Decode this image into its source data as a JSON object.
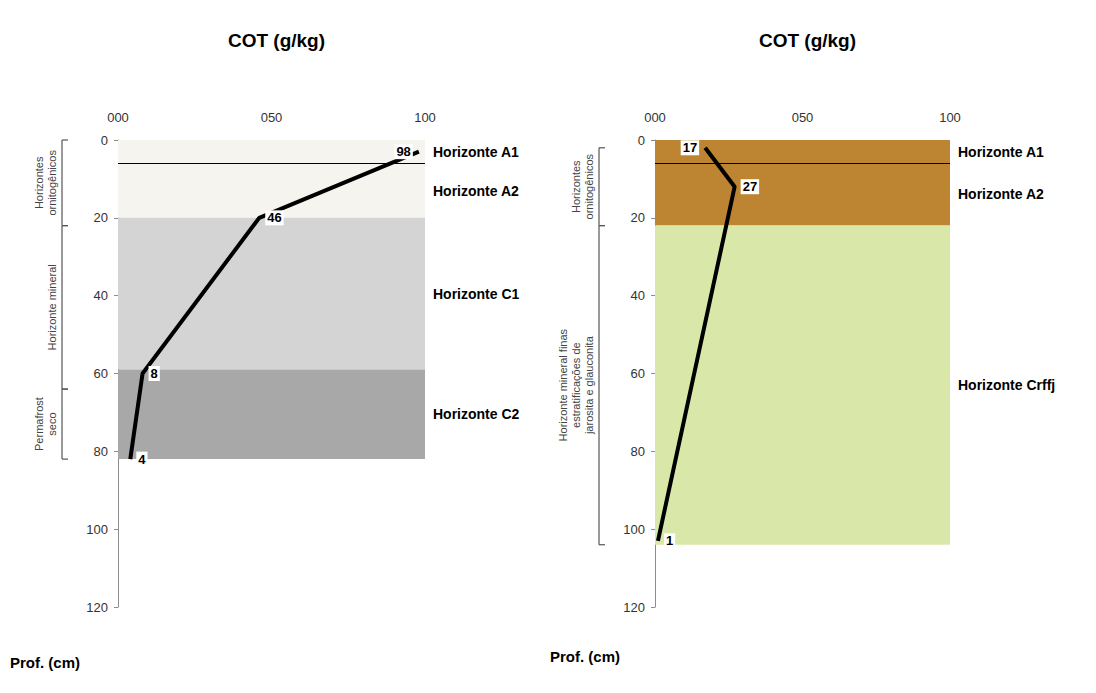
{
  "chart_data": [
    {
      "type": "line",
      "title": "COT (g/kg)",
      "y_label": "Prof. (cm)",
      "x": [
        98,
        46,
        8,
        4
      ],
      "y": [
        3,
        20,
        60,
        82
      ],
      "color": "#000000",
      "data_labels": true,
      "grid": false,
      "xlim": [
        0,
        100
      ],
      "xticks": [
        {
          "value": 0,
          "label": "000"
        },
        {
          "value": 50,
          "label": "050"
        },
        {
          "value": 100,
          "label": "100"
        }
      ],
      "ylim": [
        0,
        120
      ],
      "yticks": [
        0,
        20,
        40,
        60,
        80,
        100,
        120
      ],
      "horizons": [
        {
          "name": "Horizonte A1",
          "top": 0,
          "bottom": 6,
          "color": "#f6f4ef"
        },
        {
          "name": "Horizonte A2",
          "top": 6,
          "bottom": 20,
          "color": "#f6f4ef"
        },
        {
          "name": "Horizonte C1",
          "top": 20,
          "bottom": 59,
          "color": "#d4d4d4"
        },
        {
          "name": "Horizonte C2",
          "top": 59,
          "bottom": 82,
          "color": "#a8a8a8"
        }
      ],
      "groups": [
        {
          "label": "Horizontes ornitogênicos",
          "top": 0,
          "bottom": 22
        },
        {
          "label": "Horizonte mineral",
          "top": 22,
          "bottom": 64
        },
        {
          "label": "Permafrost seco",
          "top": 64,
          "bottom": 82
        }
      ]
    },
    {
      "type": "line",
      "title": "COT (g/kg)",
      "y_label": "Prof. (cm)",
      "x": [
        17,
        27,
        1
      ],
      "y": [
        2,
        12,
        103
      ],
      "color": "#000000",
      "data_labels": true,
      "grid": false,
      "xlim": [
        0,
        100
      ],
      "xticks": [
        {
          "value": 0,
          "label": "000"
        },
        {
          "value": 50,
          "label": "050"
        },
        {
          "value": 100,
          "label": "100"
        }
      ],
      "ylim": [
        0,
        120
      ],
      "yticks": [
        0,
        20,
        40,
        60,
        80,
        100,
        120
      ],
      "horizons": [
        {
          "name": "Horizonte A1",
          "top": 0,
          "bottom": 6,
          "color": "#bd8532"
        },
        {
          "name": "Horizonte A2",
          "top": 6,
          "bottom": 22,
          "color": "#bd8532"
        },
        {
          "name": "Horizonte Crffj",
          "top": 22,
          "bottom": 104,
          "color": "#d9e8a8"
        }
      ],
      "groups": [
        {
          "label": "Horizontes ornitogênicos",
          "top": 2,
          "bottom": 22
        },
        {
          "label": "Horizonte mineral finas estratificações de jarosita e glauconita",
          "top": 22,
          "bottom": 104
        }
      ]
    }
  ]
}
